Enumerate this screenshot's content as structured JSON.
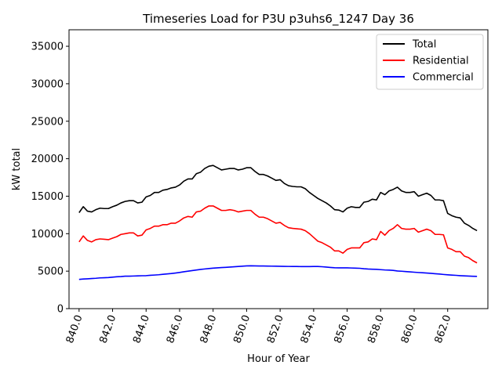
{
  "chart_data": {
    "type": "line",
    "title": "Timeseries Load for P3U p3uhs6_1247  Day 36",
    "xlabel": "Hour of Year",
    "ylabel": "kW total",
    "xlim": [
      839.4,
      864.4
    ],
    "ylim": [
      0,
      37200
    ],
    "x_ticks": [
      840.0,
      842.0,
      844.0,
      846.0,
      848.0,
      850.0,
      852.0,
      854.0,
      856.0,
      858.0,
      860.0,
      862.0
    ],
    "x_tick_labels": [
      "840.0",
      "842.0",
      "844.0",
      "846.0",
      "848.0",
      "850.0",
      "852.0",
      "854.0",
      "856.0",
      "858.0",
      "860.0",
      "862.0"
    ],
    "y_ticks": [
      0,
      5000,
      10000,
      15000,
      20000,
      25000,
      30000,
      35000
    ],
    "y_tick_labels": [
      "0",
      "5000",
      "10000",
      "15000",
      "20000",
      "25000",
      "30000",
      "35000"
    ],
    "legend_position": "top-right",
    "x": [
      840.0,
      840.25,
      840.5,
      840.75,
      841.0,
      841.25,
      841.5,
      841.75,
      842.0,
      842.25,
      842.5,
      842.75,
      843.0,
      843.25,
      843.5,
      843.75,
      844.0,
      844.25,
      844.5,
      844.75,
      845.0,
      845.25,
      845.5,
      845.75,
      846.0,
      846.25,
      846.5,
      846.75,
      847.0,
      847.25,
      847.5,
      847.75,
      848.0,
      848.25,
      848.5,
      848.75,
      849.0,
      849.25,
      849.5,
      849.75,
      850.0,
      850.25,
      850.5,
      850.75,
      851.0,
      851.25,
      851.5,
      851.75,
      852.0,
      852.25,
      852.5,
      852.75,
      853.0,
      853.25,
      853.5,
      853.75,
      854.0,
      854.25,
      854.5,
      854.75,
      855.0,
      855.25,
      855.5,
      855.75,
      856.0,
      856.25,
      856.5,
      856.75,
      857.0,
      857.25,
      857.5,
      857.75,
      858.0,
      858.25,
      858.5,
      858.75,
      859.0,
      859.25,
      859.5,
      859.75,
      860.0,
      860.25,
      860.5,
      860.75,
      861.0,
      861.25,
      861.5,
      861.75,
      862.0,
      862.25,
      862.5,
      862.75,
      863.0,
      863.25,
      863.5,
      863.75
    ],
    "series": [
      {
        "name": "Total",
        "color": "#000000",
        "values": [
          12800,
          13600,
          13000,
          12900,
          13200,
          13400,
          13350,
          13350,
          13600,
          13800,
          14100,
          14300,
          14400,
          14400,
          14100,
          14200,
          14900,
          15100,
          15500,
          15500,
          15800,
          15900,
          16100,
          16200,
          16500,
          17000,
          17300,
          17300,
          18000,
          18200,
          18700,
          19000,
          19100,
          18800,
          18500,
          18600,
          18700,
          18700,
          18500,
          18600,
          18800,
          18800,
          18300,
          17900,
          17900,
          17700,
          17400,
          17100,
          17200,
          16700,
          16400,
          16300,
          16250,
          16250,
          16000,
          15500,
          15100,
          14700,
          14400,
          14100,
          13700,
          13200,
          13150,
          12900,
          13400,
          13600,
          13500,
          13500,
          14200,
          14300,
          14600,
          14500,
          15500,
          15200,
          15700,
          15900,
          16200,
          15700,
          15500,
          15500,
          15600,
          15000,
          15200,
          15400,
          15100,
          14500,
          14500,
          14400,
          12700,
          12400,
          12200,
          12100,
          11400,
          11100,
          10700,
          10400
        ]
      },
      {
        "name": "Residential",
        "color": "#ff0000",
        "values": [
          8900,
          9700,
          9100,
          8900,
          9200,
          9300,
          9250,
          9200,
          9400,
          9600,
          9900,
          10000,
          10100,
          10100,
          9700,
          9800,
          10500,
          10700,
          11000,
          11000,
          11200,
          11200,
          11400,
          11400,
          11700,
          12100,
          12300,
          12200,
          12900,
          13000,
          13400,
          13700,
          13700,
          13400,
          13100,
          13100,
          13200,
          13100,
          12900,
          13000,
          13100,
          13100,
          12600,
          12200,
          12200,
          12000,
          11700,
          11400,
          11500,
          11100,
          10800,
          10700,
          10650,
          10600,
          10400,
          10000,
          9500,
          9000,
          8800,
          8500,
          8200,
          7700,
          7700,
          7400,
          7900,
          8100,
          8100,
          8100,
          8800,
          8900,
          9300,
          9200,
          10300,
          9800,
          10400,
          10700,
          11200,
          10700,
          10600,
          10600,
          10700,
          10200,
          10400,
          10600,
          10400,
          9900,
          9900,
          9850,
          8100,
          7900,
          7600,
          7600,
          7000,
          6800,
          6400,
          6100
        ]
      },
      {
        "name": "Commercial",
        "color": "#0000ff",
        "values": [
          3900,
          3950,
          3980,
          4020,
          4050,
          4100,
          4120,
          4150,
          4200,
          4250,
          4280,
          4330,
          4330,
          4350,
          4370,
          4390,
          4400,
          4450,
          4480,
          4520,
          4580,
          4630,
          4680,
          4750,
          4830,
          4920,
          5000,
          5070,
          5150,
          5230,
          5290,
          5350,
          5400,
          5440,
          5480,
          5510,
          5550,
          5580,
          5620,
          5660,
          5700,
          5710,
          5700,
          5690,
          5690,
          5680,
          5670,
          5660,
          5650,
          5640,
          5630,
          5620,
          5620,
          5610,
          5610,
          5610,
          5620,
          5620,
          5590,
          5540,
          5490,
          5450,
          5440,
          5440,
          5440,
          5420,
          5400,
          5380,
          5320,
          5280,
          5260,
          5240,
          5200,
          5160,
          5140,
          5100,
          5020,
          4990,
          4940,
          4900,
          4860,
          4820,
          4790,
          4750,
          4710,
          4660,
          4620,
          4560,
          4510,
          4470,
          4440,
          4400,
          4370,
          4340,
          4320,
          4300
        ]
      }
    ]
  }
}
